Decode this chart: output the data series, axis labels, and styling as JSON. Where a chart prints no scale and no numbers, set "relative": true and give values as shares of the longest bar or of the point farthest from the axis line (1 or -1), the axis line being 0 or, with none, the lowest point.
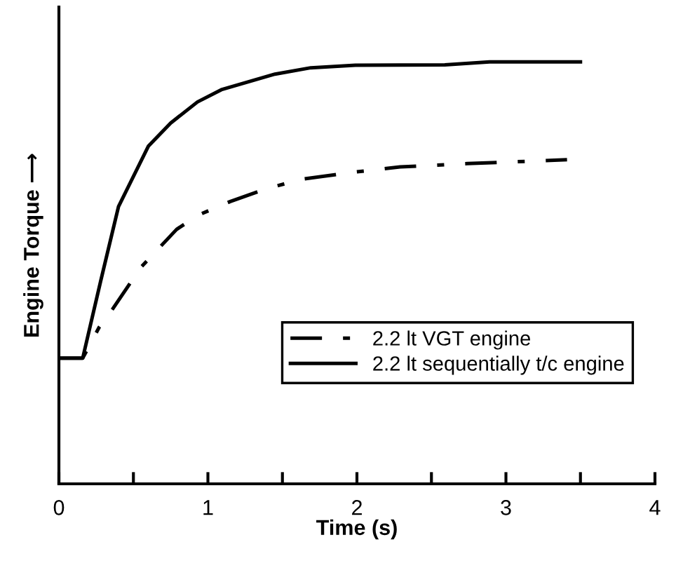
{
  "chart_data": {
    "type": "line",
    "relative": true,
    "xlabel": "Time (s)",
    "ylabel": "Engine Torque ⟶",
    "xlim": [
      0,
      4
    ],
    "xticks": [
      0,
      {
        "value": 0.5,
        "label": null
      },
      1,
      {
        "value": 1.5,
        "label": null
      },
      2,
      {
        "value": 2.5,
        "label": null
      },
      3,
      {
        "value": 3.5,
        "label": null
      },
      4
    ],
    "legend": "bottom right",
    "grid": false,
    "marker": "none",
    "series": [
      {
        "name": "2.2 lt VGT engine",
        "color": "#000000",
        "line_style": "dashdot",
        "x": [
          0,
          0.16,
          0.27,
          0.36,
          0.55,
          0.79,
          0.93,
          1.15,
          1.39,
          1.63,
          1.99,
          2.29,
          2.74,
          3.19,
          3.41
        ],
        "values": [
          0.298,
          0.298,
          0.371,
          0.414,
          0.513,
          0.603,
          0.636,
          0.669,
          0.699,
          0.722,
          0.739,
          0.751,
          0.759,
          0.765,
          0.768
        ]
      },
      {
        "name": "2.2 lt sequentially t/c engine",
        "color": "#000000",
        "line_style": "solid",
        "x": [
          0,
          0.16,
          0.28,
          0.4,
          0.6,
          0.75,
          0.93,
          1.09,
          1.45,
          1.69,
          1.99,
          2.59,
          2.89,
          3.19,
          3.5
        ],
        "values": [
          0.298,
          0.298,
          0.48,
          0.657,
          0.8,
          0.855,
          0.905,
          0.934,
          0.971,
          0.986,
          0.992,
          0.993,
          1,
          1,
          1
        ]
      }
    ]
  }
}
